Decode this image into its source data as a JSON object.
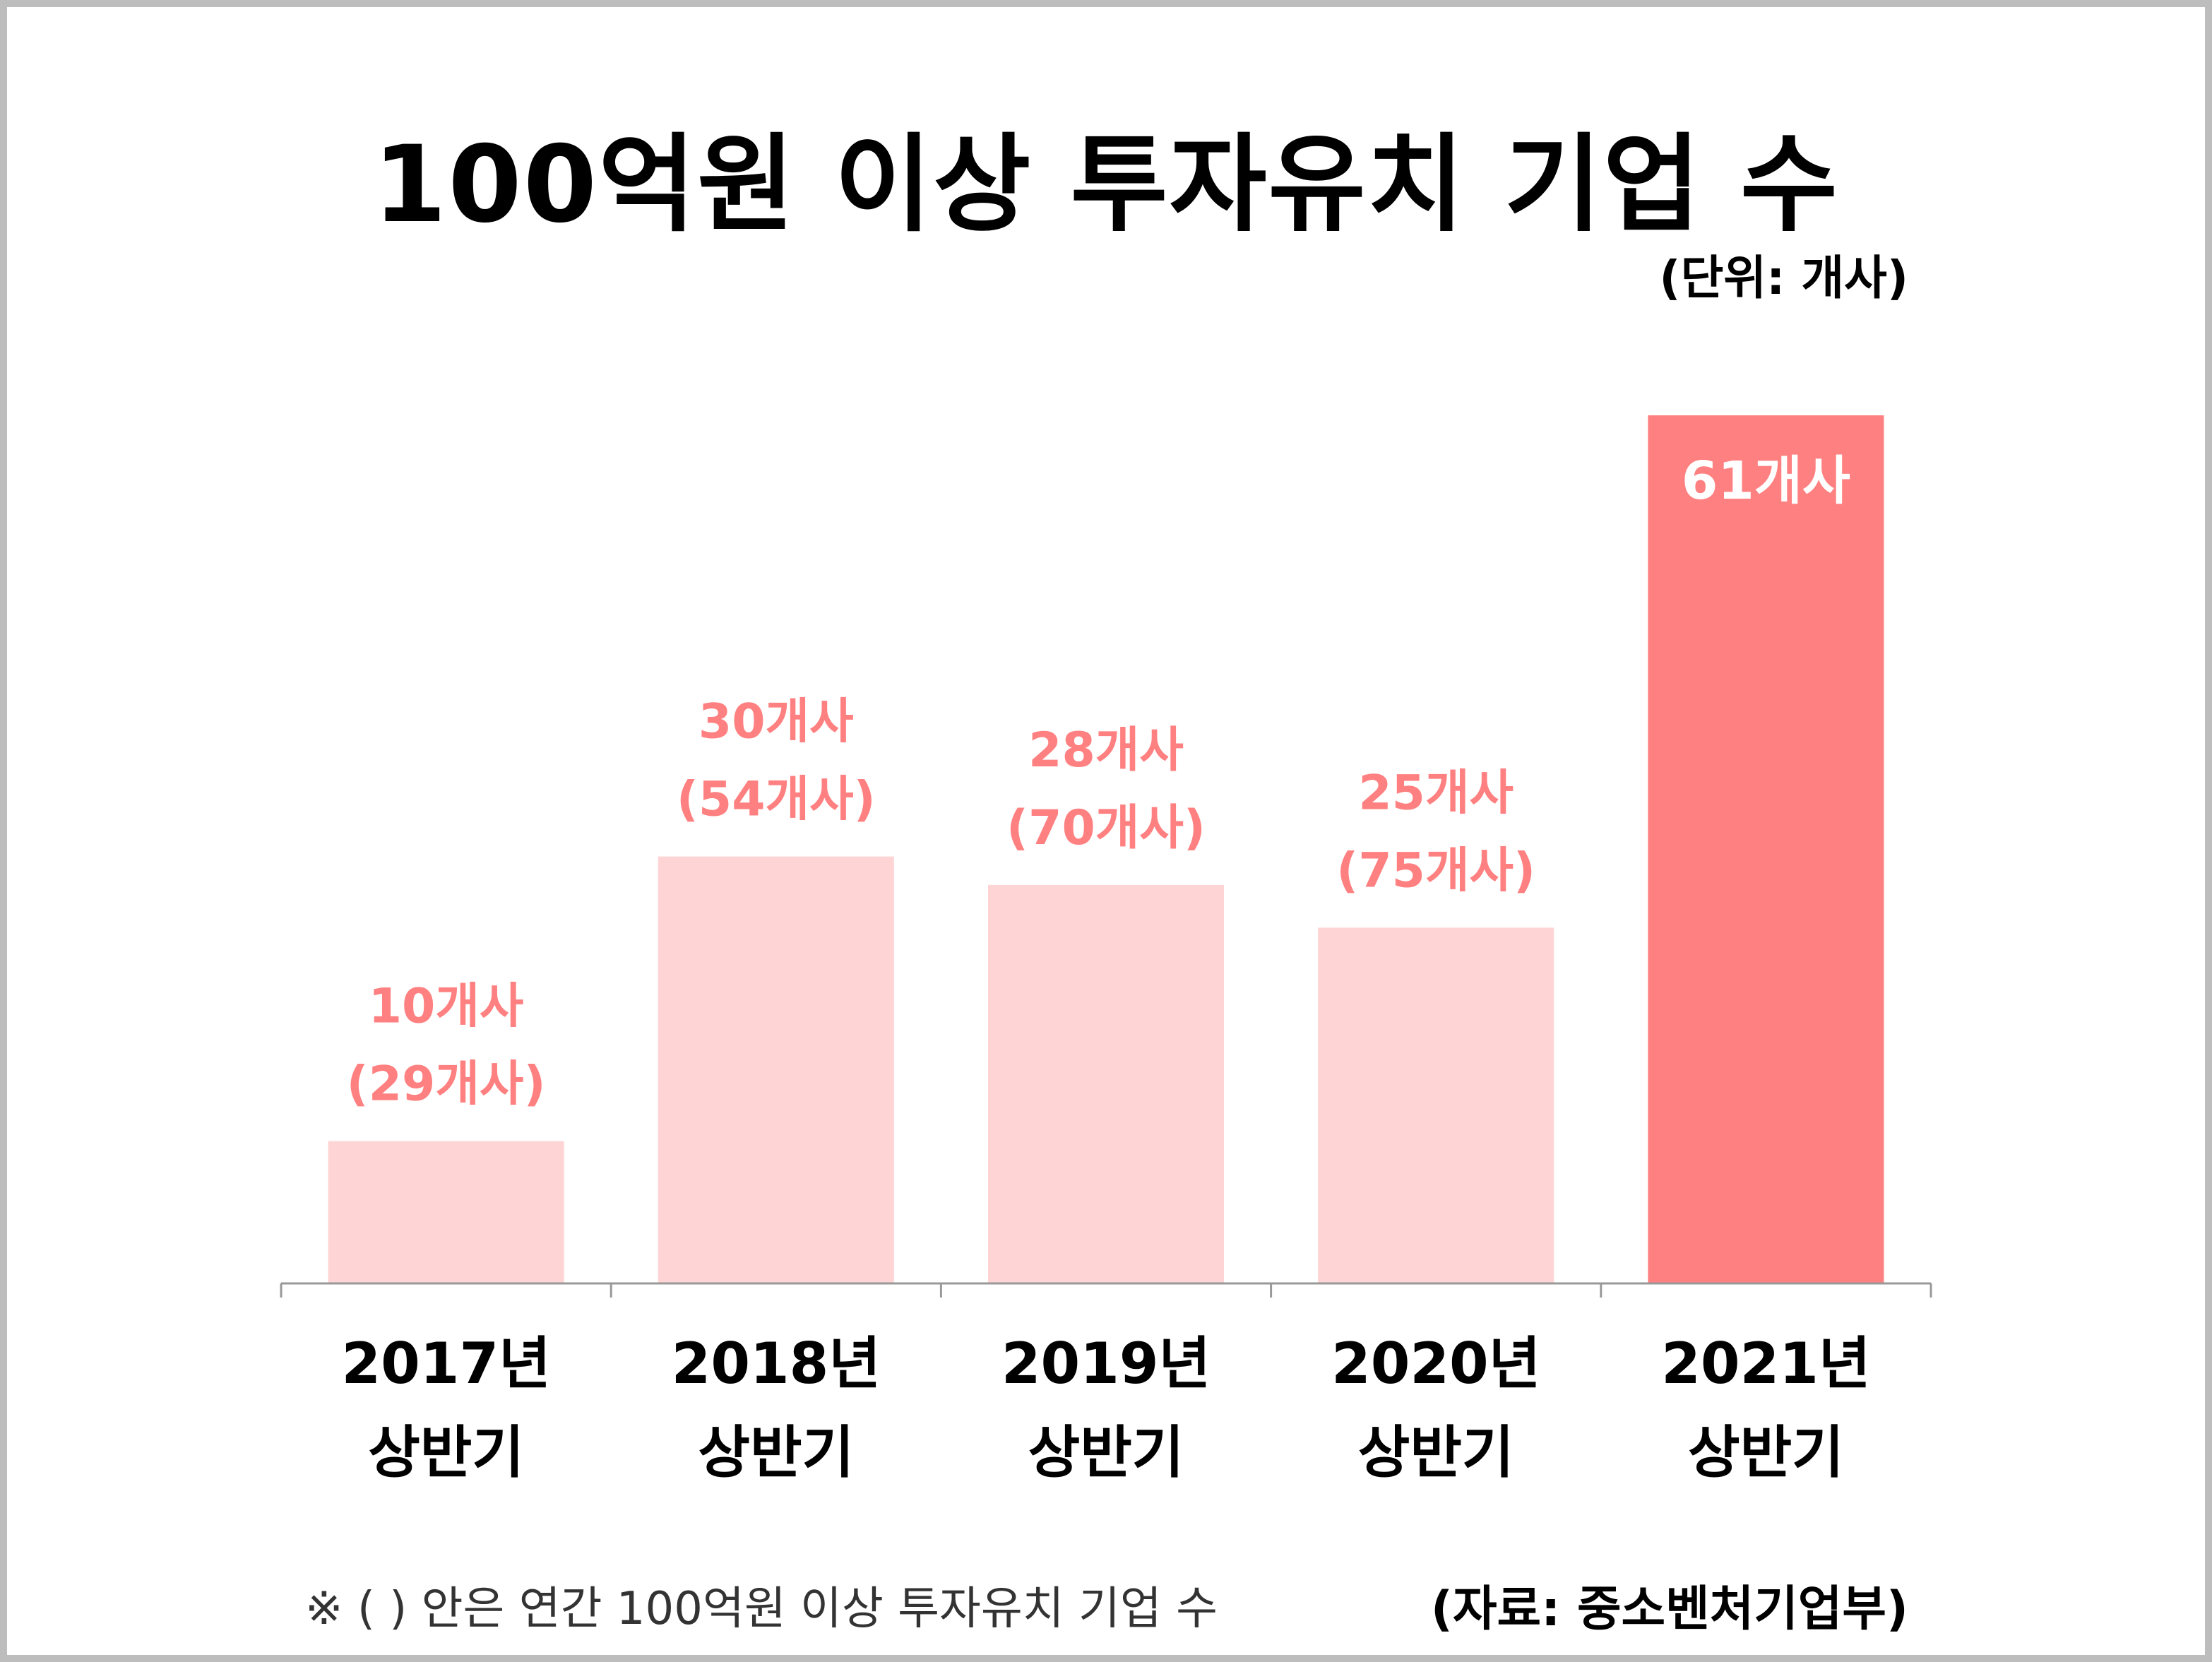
{
  "chart_data": {
    "type": "bar",
    "title": "100억원 이상 투자유치 기업 수",
    "unit_label": "(단위: 개사)",
    "categories": [
      [
        "2017년",
        "상반기"
      ],
      [
        "2018년",
        "상반기"
      ],
      [
        "2019년",
        "상반기"
      ],
      [
        "2020년",
        "상반기"
      ],
      [
        "2021년",
        "상반기"
      ]
    ],
    "values": [
      10,
      30,
      28,
      25,
      61
    ],
    "value_labels": [
      "10개사",
      "30개사",
      "28개사",
      "25개사",
      "61개사"
    ],
    "annual_labels": [
      "(29개사)",
      "(54개사)",
      "(70개사)",
      "(75개사)",
      ""
    ],
    "annual_values": [
      29,
      54,
      70,
      75
    ],
    "highlight_index": 4,
    "ylim": [
      0,
      61
    ],
    "grid": false,
    "legend": "none",
    "colors": {
      "bar": "#ffd4d5",
      "bar_highlight": "#ff8080",
      "label": "#ff8080",
      "label_highlight": "#ffffff",
      "axis": "#999999"
    },
    "footnote": "※ ( ) 안은 연간 100억원 이상 투자유치 기업 수",
    "source": "(자료: 중소벤처기업부)"
  }
}
